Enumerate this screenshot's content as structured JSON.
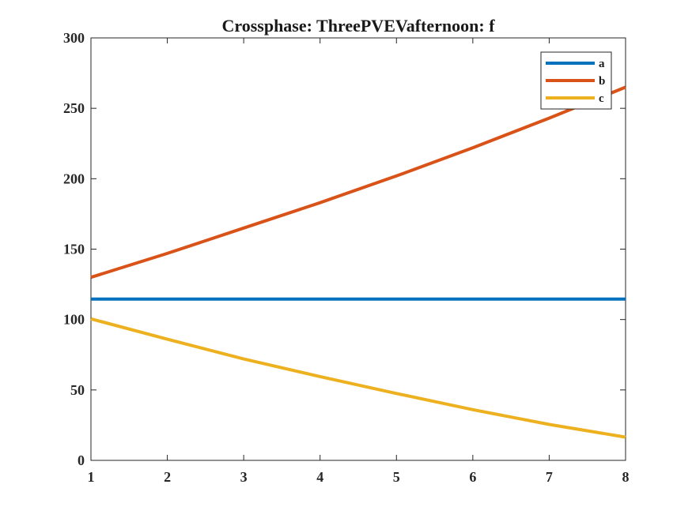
{
  "chart_data": {
    "type": "line",
    "title": "Crossphase: ThreePVEVafternoon: f",
    "xlabel": "",
    "ylabel": "",
    "xlim": [
      1,
      8
    ],
    "ylim": [
      0,
      300
    ],
    "xticks": [
      1,
      2,
      3,
      4,
      5,
      6,
      7,
      8
    ],
    "yticks": [
      0,
      50,
      100,
      150,
      200,
      250,
      300
    ],
    "grid": false,
    "legend_position": "top-right",
    "x": [
      1,
      2,
      3,
      4,
      5,
      6,
      7,
      8
    ],
    "series": [
      {
        "name": "a",
        "color": "#0072BD",
        "values": [
          114.5,
          114.5,
          114.5,
          114.5,
          114.5,
          114.5,
          114.5,
          114.5
        ]
      },
      {
        "name": "b",
        "color": "#D95319",
        "values": [
          130,
          147,
          165,
          183,
          202,
          222,
          243,
          265
        ]
      },
      {
        "name": "c",
        "color": "#EDB120",
        "values": [
          100.5,
          86,
          72,
          59.5,
          47.5,
          36,
          25.5,
          16.5
        ]
      }
    ]
  }
}
